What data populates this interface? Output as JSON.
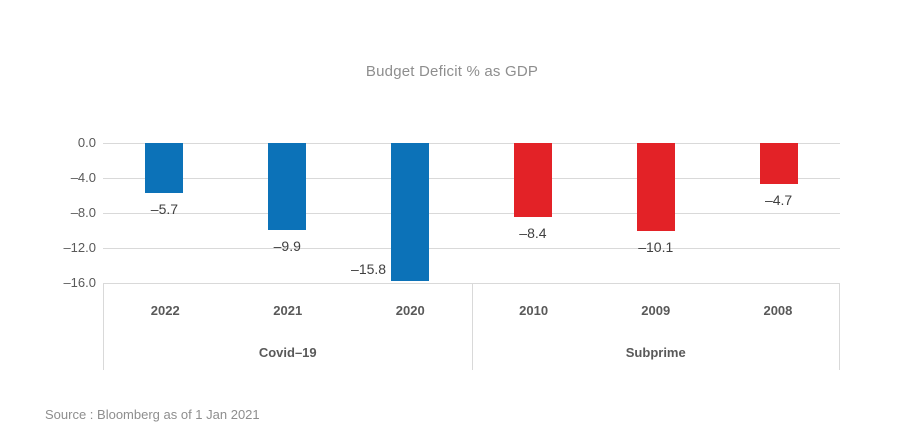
{
  "title": "Budget Deficit % as GDP",
  "source": "Source : Bloomberg as of 1 Jan 2021",
  "colors": {
    "covid_blue": "#0c72b8",
    "subprime_red": "#e32227",
    "gridline": "#d9d9d9",
    "title_text": "#8e8e8e",
    "axis_text": "#595959",
    "value_text": "#404040",
    "source_text": "#8e8e8e"
  },
  "chart_data": {
    "type": "bar",
    "title": "Budget Deficit % as GDP",
    "xlabel": "",
    "ylabel": "",
    "ylim": [
      -16,
      0
    ],
    "grid": true,
    "yticks": [
      0.0,
      -4.0,
      -8.0,
      -12.0,
      -16.0
    ],
    "ytick_labels": [
      "0.0",
      "–4.0",
      "–8.0",
      "–12.0",
      "–16.0"
    ],
    "legend": "none",
    "groups": [
      {
        "label": "Covid–19",
        "color": "#0c72b8",
        "categories": [
          "2022",
          "2021",
          "2020"
        ],
        "values": [
          -5.7,
          -9.9,
          -15.8
        ],
        "value_labels": [
          "–5.7",
          "–9.9",
          "–15.8"
        ]
      },
      {
        "label": "Subprime",
        "color": "#e32227",
        "categories": [
          "2010",
          "2009",
          "2008"
        ],
        "values": [
          -8.4,
          -10.1,
          -4.7
        ],
        "value_labels": [
          "–8.4",
          "–10.1",
          "–4.7"
        ]
      }
    ]
  }
}
